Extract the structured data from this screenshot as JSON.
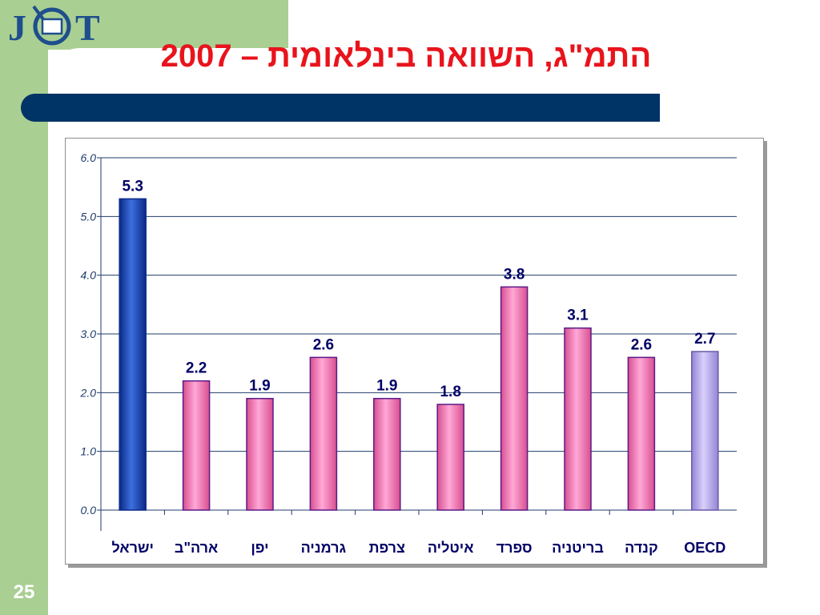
{
  "slide": {
    "title": "התמ\"ג, השוואה בינלאומית – 2007",
    "page_number": "25",
    "logo_text": "JCT"
  },
  "colors": {
    "background_band": "#a9cf93",
    "title_text": "#e8141c",
    "title_bar": "#003366",
    "bar_israel": "#1a3fa6",
    "bar_default": "#f27fb5",
    "bar_oecd": "#b4a6ea",
    "value_labels": "#000066",
    "gridlines": "#1f3b6b"
  },
  "chart_data": {
    "type": "bar",
    "title": "",
    "xlabel": "",
    "ylabel": "",
    "categories": [
      "ישראל",
      "ארה\"ב",
      "יפן",
      "גרמניה",
      "צרפת",
      "איטליה",
      "ספרד",
      "בריטניה",
      "קנדה",
      "OECD"
    ],
    "values": [
      5.3,
      2.2,
      1.9,
      2.6,
      1.9,
      1.8,
      3.8,
      3.1,
      2.6,
      2.7
    ],
    "value_labels": [
      "5.3",
      "2.2",
      "1.9",
      "2.6",
      "1.9",
      "1.8",
      "3.8",
      "3.1",
      "2.6",
      "2.7"
    ],
    "ylim": [
      0,
      6
    ],
    "yticks": [
      "0.0",
      "1.0",
      "2.0",
      "3.0",
      "4.0",
      "5.0",
      "6.0"
    ],
    "grid": true,
    "legend": "none",
    "highlight": {
      "ישראל": "bar_israel",
      "OECD": "bar_oecd"
    }
  }
}
